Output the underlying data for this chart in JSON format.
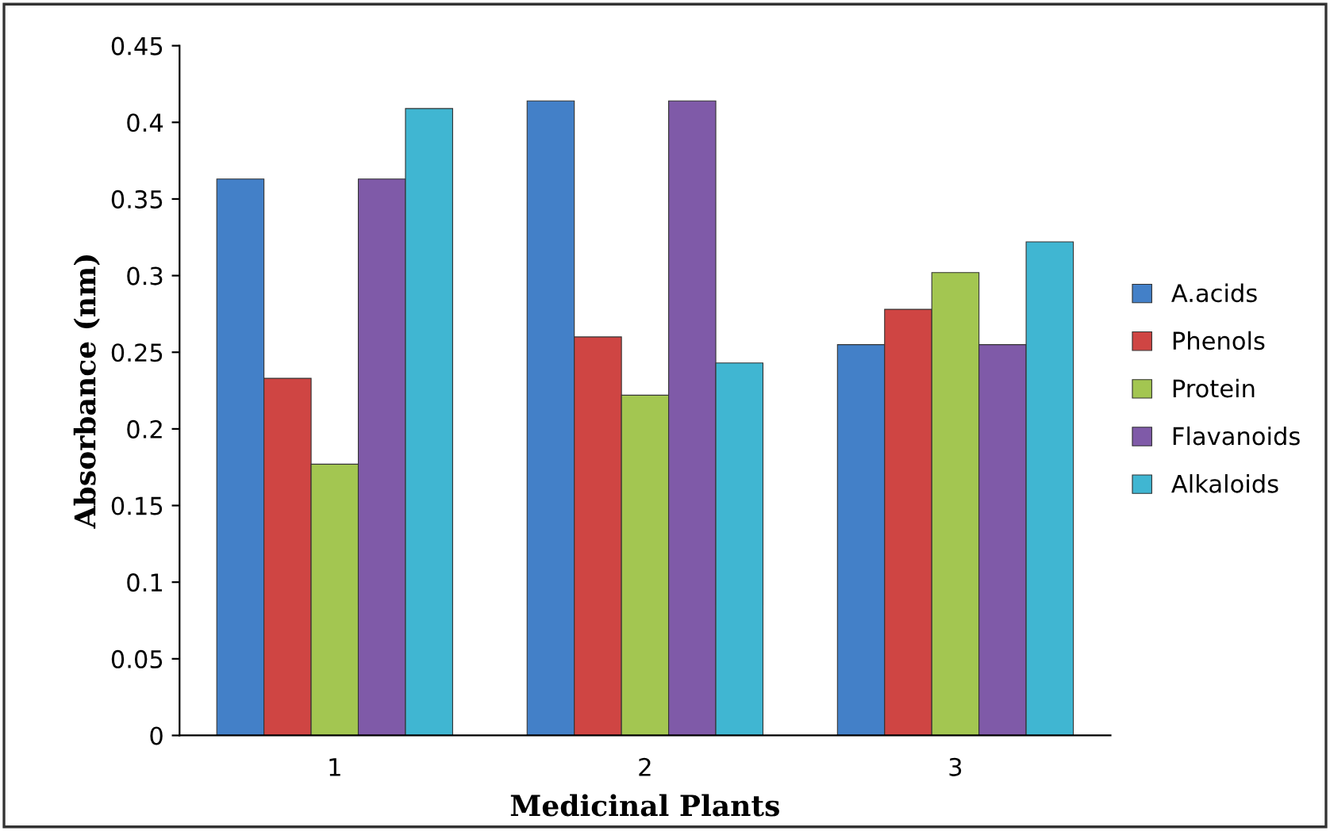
{
  "chart_data": {
    "type": "bar",
    "xlabel": "Medicinal Plants",
    "ylabel": "Absorbance (nm)",
    "categories": [
      "1",
      "2",
      "3"
    ],
    "series": [
      {
        "name": "A.acids",
        "color": "#4380c8",
        "values": [
          0.363,
          0.414,
          0.255
        ]
      },
      {
        "name": "Phenols",
        "color": "#cf4543",
        "values": [
          0.233,
          0.26,
          0.278
        ]
      },
      {
        "name": "Protein",
        "color": "#a3c651",
        "values": [
          0.177,
          0.222,
          0.302
        ]
      },
      {
        "name": "Flavanoids",
        "color": "#7f5aa8",
        "values": [
          0.363,
          0.414,
          0.255
        ]
      },
      {
        "name": "Alkaloids",
        "color": "#40b6d2",
        "values": [
          0.409,
          0.243,
          0.322
        ]
      }
    ],
    "ylim": [
      0,
      0.45
    ],
    "yticks": [
      0,
      0.05,
      0.1,
      0.15,
      0.2,
      0.25,
      0.3,
      0.35,
      0.4,
      0.45
    ],
    "grid": false,
    "legend": "right"
  }
}
